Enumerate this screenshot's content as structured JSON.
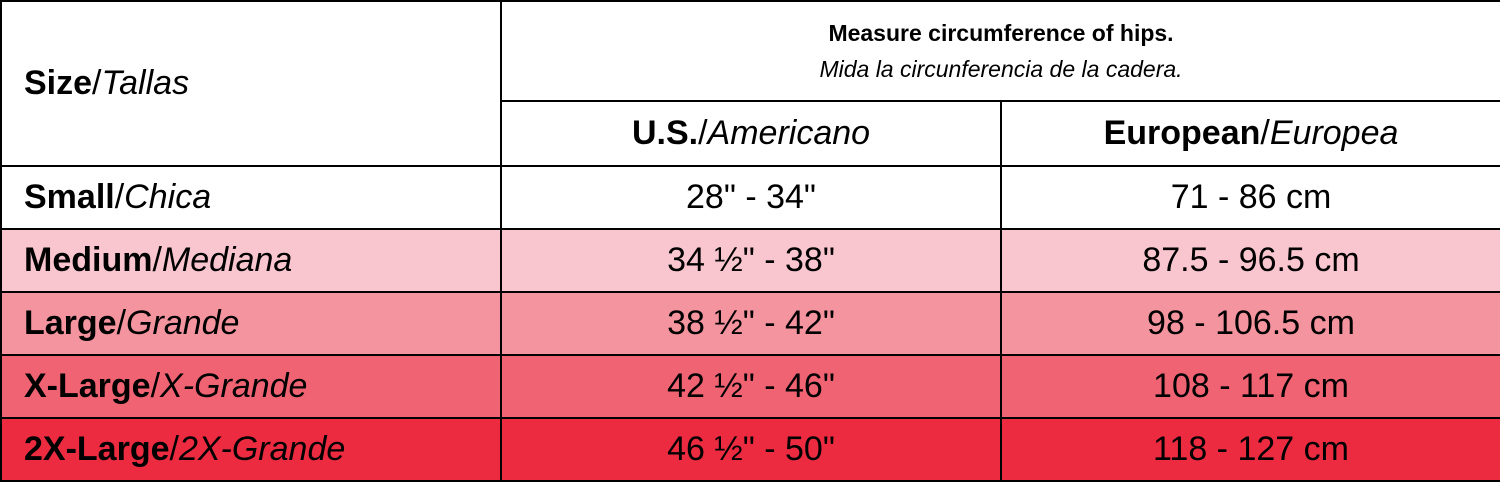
{
  "header": {
    "size": {
      "en": "Size",
      "sep": "/",
      "es": "Tallas"
    },
    "measure": {
      "line1": "Measure circumference of hips.",
      "line2": "Mida la circunferencia de la cadera."
    },
    "us": {
      "en": "U.S.",
      "sep": "/",
      "es": "Americano"
    },
    "eu": {
      "en": "European",
      "sep": "/",
      "es": "Europea"
    }
  },
  "rows": [
    {
      "label": {
        "en": "Small",
        "sep": "/",
        "es": "Chica"
      },
      "us": "28\" - 34\"",
      "eu": "71 - 86 cm",
      "color": "#ffffff"
    },
    {
      "label": {
        "en": "Medium",
        "sep": "/",
        "es": "Mediana"
      },
      "us": "34 ½\" - 38\"",
      "eu": "87.5 - 96.5 cm",
      "color": "#f9c6cf"
    },
    {
      "label": {
        "en": "Large",
        "sep": "/",
        "es": "Grande"
      },
      "us": "38 ½\" - 42\"",
      "eu": "98 - 106.5 cm",
      "color": "#f4949f"
    },
    {
      "label": {
        "en": "X-Large",
        "sep": "/",
        "es": "X-Grande"
      },
      "us": "42 ½\" - 46\"",
      "eu": "108 - 117 cm",
      "color": "#ef6373"
    },
    {
      "label": {
        "en": "2X-Large",
        "sep": "/",
        "es": "2X-Grande"
      },
      "us": "46 ½\" - 50\"",
      "eu": "118 - 127 cm",
      "color": "#ec2b40"
    }
  ]
}
